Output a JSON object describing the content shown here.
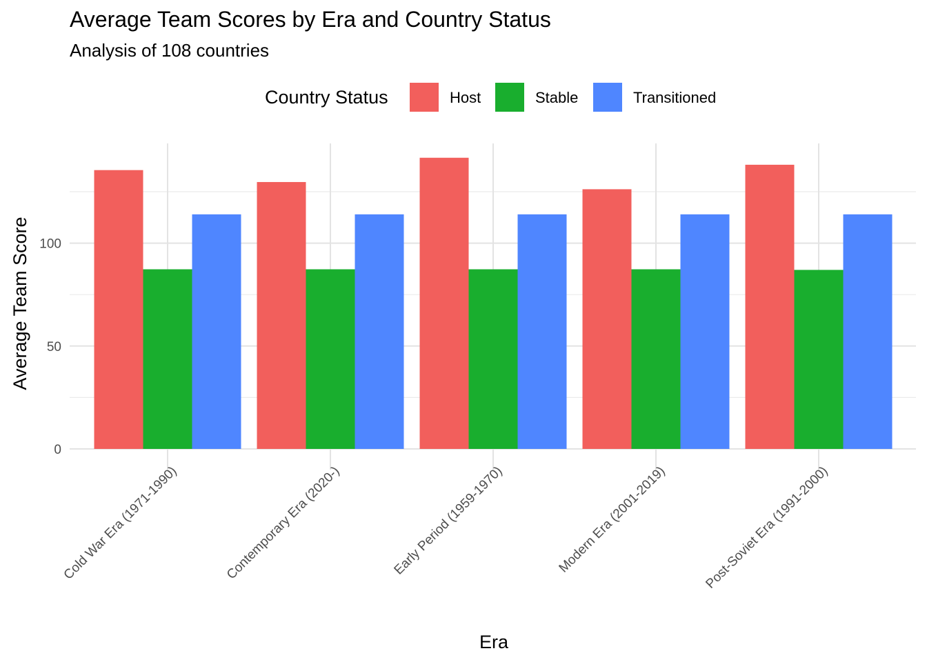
{
  "chart_data": {
    "type": "bar",
    "title": "Average Team Scores by Era and Country Status",
    "subtitle": "Analysis of 108 countries",
    "xlabel": "Era",
    "ylabel": "Average Team Score",
    "ylim": [
      0,
      150
    ],
    "yticks": [
      0,
      50,
      100
    ],
    "grid": true,
    "legend_title": "Country Status",
    "legend_position": "top",
    "categories": [
      "Cold War Era (1971-1990)",
      "Contemporary Era (2020-)",
      "Early Period (1959-1970)",
      "Modern Era (2001-2019)",
      "Post-Soviet Era (1991-2000)"
    ],
    "series": [
      {
        "name": "Host",
        "color": "#F8766D",
        "values": [
          135.5,
          129.7,
          141.5,
          126.2,
          138.1
        ]
      },
      {
        "name": "Stable",
        "color": "#1AAE3A",
        "values": [
          87.3,
          87.3,
          87.3,
          87.3,
          87.0
        ]
      },
      {
        "name": "Transitioned",
        "color": "#4F86FF",
        "values": [
          114.0,
          114.0,
          114.0,
          114.0,
          114.0
        ]
      }
    ]
  }
}
